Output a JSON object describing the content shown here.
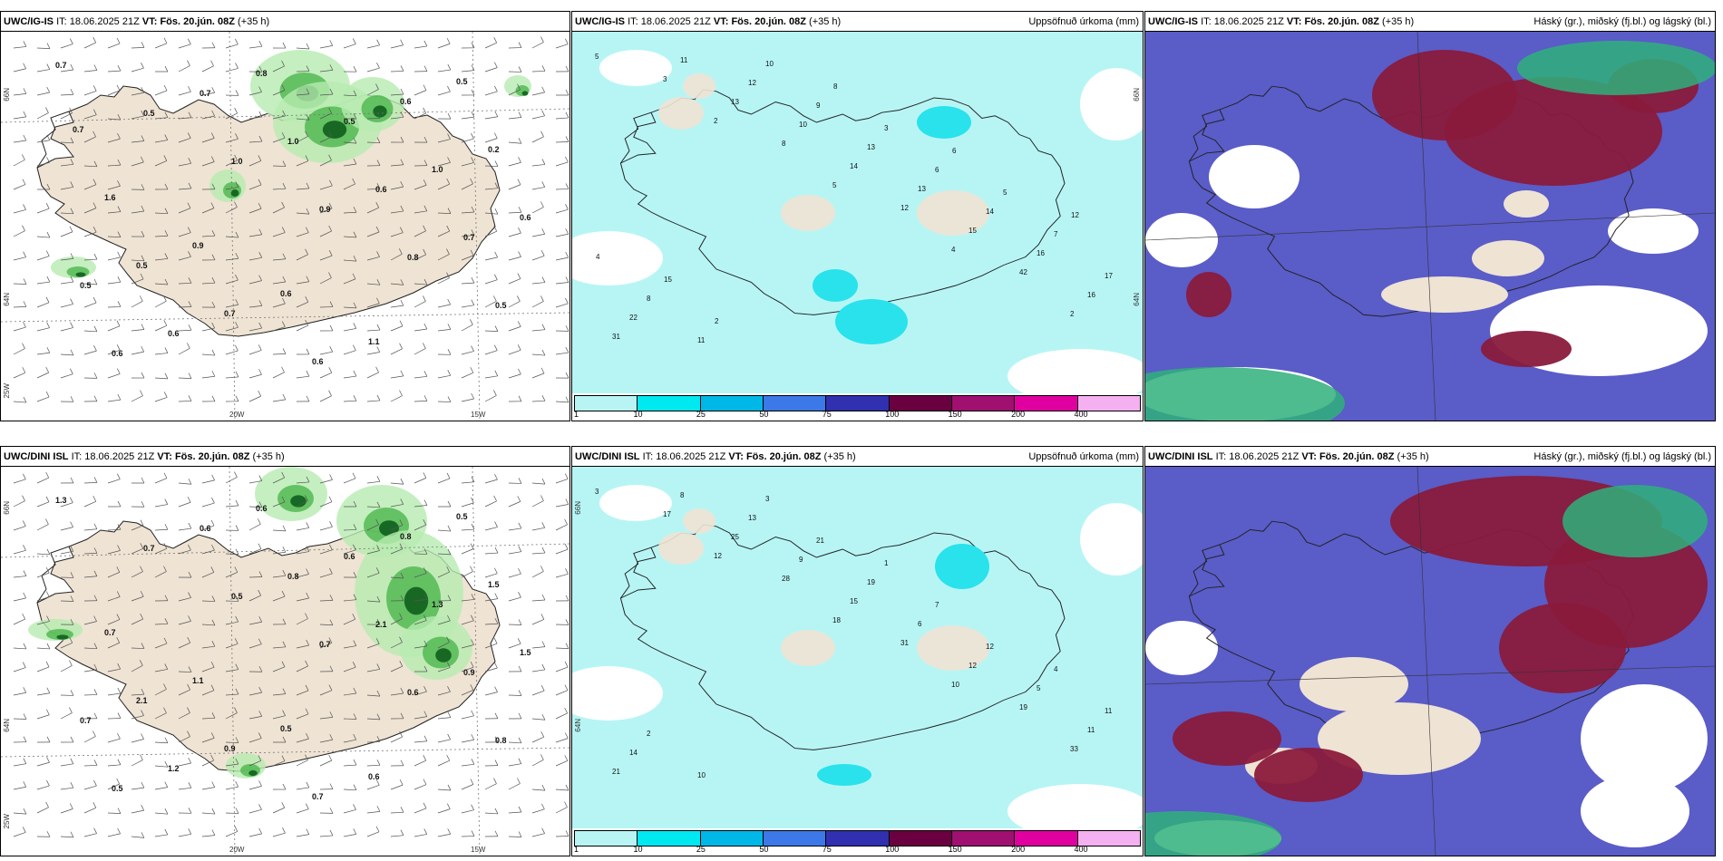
{
  "rows": [
    {
      "model": "UWC/IG-IS",
      "it_label": "IT:",
      "it_value": "18.06.2025 21Z",
      "vt_label": "VT:",
      "vt_value": "Fös. 20.jún. 08Z",
      "lead": "(+35 h)",
      "wind_values": [
        "0.7",
        "0.5",
        "1.0",
        "0.9",
        "0.8",
        "0.5",
        "0.6",
        "0.7",
        "1.0",
        "0.6",
        "0.7",
        "0.5",
        "0.6",
        "0.8",
        "0.5",
        "1.0",
        "0.6",
        "0.5",
        "0.7",
        "0.6",
        "0.6",
        "0.2",
        "1.6",
        "0.9",
        "0.6",
        "1.1",
        "0.5",
        "0.7"
      ],
      "precip_values": [
        "5",
        "2",
        "5",
        "4",
        "2",
        "3",
        "8",
        "12",
        "42",
        "31",
        "13",
        "14",
        "15",
        "16",
        "11",
        "10",
        "13",
        "16",
        "22",
        "12",
        "13",
        "14",
        "17",
        "11",
        "9",
        "6",
        "7",
        "8",
        "10",
        "3",
        "5",
        "4",
        "2",
        "8",
        "6",
        "12",
        "15"
      ],
      "cloud_values": []
    },
    {
      "model": "UWC/DINI ISL",
      "it_label": "IT:",
      "it_value": "18.06.2025 21Z",
      "vt_label": "VT:",
      "vt_value": "Fös. 20.jún. 08Z",
      "lead": "(+35 h)",
      "wind_values": [
        "1.3",
        "0.7",
        "0.5",
        "0.7",
        "0.6",
        "0.8",
        "0.5",
        "0.6",
        "0.8",
        "2.1",
        "0.9",
        "0.7",
        "1.2",
        "0.6",
        "0.6",
        "1.3",
        "1.5",
        "2.1",
        "0.9",
        "0.7",
        "0.8",
        "1.5",
        "0.7",
        "1.1",
        "0.5",
        "0.6",
        "0.5"
      ],
      "precip_values": [
        "3",
        "12",
        "18",
        "10",
        "33",
        "17",
        "28",
        "31",
        "19",
        "21",
        "25",
        "15",
        "12",
        "11",
        "8",
        "9",
        "6",
        "5",
        "14",
        "13",
        "19",
        "12",
        "11",
        "10",
        "21",
        "7",
        "4",
        "2",
        "3",
        "1"
      ],
      "cloud_values": []
    }
  ],
  "precip_title": "Uppsöfnuð úrkoma (mm)",
  "cloud_title": "Háský (gr.), miðský (fj.bl.) og lágský (bl.)",
  "legend_ticks": [
    "1",
    "10",
    "25",
    "50",
    "75",
    "100",
    "150",
    "200",
    "400"
  ],
  "legend_colors": [
    "#b8f4f4",
    "#00e8f0",
    "#00b8e8",
    "#3c78e8",
    "#3030b0",
    "#6a0040",
    "#a01070",
    "#e000a0",
    "#f4b0f0"
  ],
  "axis_labels": {
    "lon_20w": "20W",
    "lon_15w": "15W",
    "lat_66n": "66N",
    "lat_64n": "64N",
    "lon_25w": "25W"
  },
  "colors": {
    "land": "#efe3d3",
    "wind_green_light": "#b6ebb0",
    "wind_green_mid": "#4cb64c",
    "wind_green_dark": "#0f5e1e",
    "precip_fill": "#b7f5f5",
    "precip_mid": "#29e2ec",
    "cloud_blue": "#5a5cc8",
    "cloud_red": "#8a1a3c",
    "cloud_green": "#2fb07a",
    "cloud_teal": "#7bc6a8"
  }
}
